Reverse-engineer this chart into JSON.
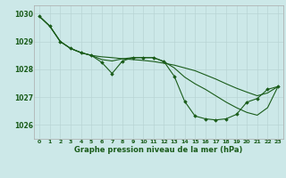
{
  "title": "Graphe pression niveau de la mer (hPa)",
  "background_color": "#cce8e8",
  "plot_bg_color": "#cce8e8",
  "grid_color": "#b8d4d4",
  "line_color": "#1a5c1a",
  "xlim": [
    -0.5,
    23.5
  ],
  "ylim": [
    1025.5,
    1030.3
  ],
  "yticks": [
    1026,
    1027,
    1028,
    1029,
    1030
  ],
  "xticks": [
    0,
    1,
    2,
    3,
    4,
    5,
    6,
    7,
    8,
    9,
    10,
    11,
    12,
    13,
    14,
    15,
    16,
    17,
    18,
    19,
    20,
    21,
    22,
    23
  ],
  "line1": [
    1029.9,
    1029.55,
    1029.0,
    1028.75,
    1028.6,
    1028.5,
    1028.45,
    1028.42,
    1028.38,
    1028.35,
    1028.32,
    1028.28,
    1028.22,
    1028.15,
    1028.05,
    1027.95,
    1027.8,
    1027.65,
    1027.48,
    1027.32,
    1027.18,
    1027.05,
    1027.15,
    1027.38
  ],
  "line2": [
    1029.9,
    1029.55,
    1029.0,
    1028.75,
    1028.6,
    1028.5,
    1028.25,
    1027.85,
    1028.3,
    1028.42,
    1028.42,
    1028.42,
    1028.28,
    1027.75,
    1026.85,
    1026.32,
    1026.22,
    1026.18,
    1026.22,
    1026.38,
    1026.82,
    1026.95,
    1027.28,
    1027.38
  ],
  "line3": [
    1029.9,
    1029.55,
    1029.0,
    1028.75,
    1028.6,
    1028.5,
    1028.35,
    1028.3,
    1028.38,
    1028.42,
    1028.42,
    1028.42,
    1028.28,
    1028.05,
    1027.72,
    1027.48,
    1027.28,
    1027.05,
    1026.82,
    1026.62,
    1026.45,
    1026.35,
    1026.62,
    1027.38
  ],
  "xlabel_fontsize": 6.0,
  "xtick_fontsize": 4.5,
  "ytick_fontsize": 5.5
}
